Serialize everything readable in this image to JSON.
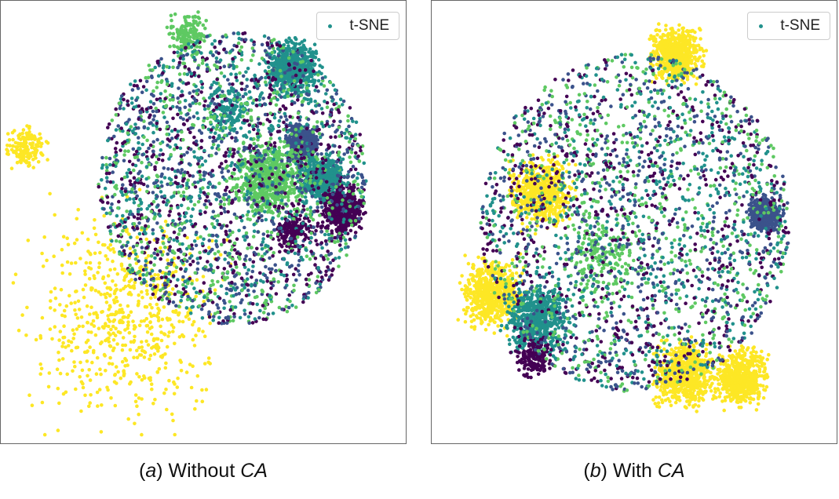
{
  "chart_data": [
    {
      "type": "scatter",
      "caption": {
        "letter": "a",
        "text": " Without ",
        "method": "CA"
      },
      "legend": {
        "label": "t-SNE",
        "position": "top-right"
      },
      "axes": "hidden",
      "palette": [
        "#440154",
        "#3b528b",
        "#21918c",
        "#5ec962",
        "#fde725"
      ],
      "regions": [
        {
          "class": 4,
          "cx": 0.3,
          "cy": 0.72,
          "r": 0.2,
          "density": "high"
        },
        {
          "class": 4,
          "cx": 0.06,
          "cy": 0.33,
          "r": 0.04,
          "density": "medium"
        },
        {
          "class": 1,
          "cx": 0.74,
          "cy": 0.32,
          "r": 0.03,
          "density": "high"
        },
        {
          "class": 2,
          "cx": 0.79,
          "cy": 0.4,
          "r": 0.04,
          "density": "high"
        },
        {
          "class": 0,
          "cx": 0.84,
          "cy": 0.47,
          "r": 0.04,
          "density": "high"
        },
        {
          "class": 3,
          "cx": 0.66,
          "cy": 0.4,
          "r": 0.07,
          "density": "high"
        },
        {
          "class": 2,
          "cx": 0.72,
          "cy": 0.15,
          "r": 0.05,
          "density": "high"
        },
        {
          "class": 2,
          "cx": 0.56,
          "cy": 0.25,
          "r": 0.05,
          "density": "medium"
        },
        {
          "class": 0,
          "cx": 0.72,
          "cy": 0.52,
          "r": 0.04,
          "density": "medium"
        },
        {
          "class": 3,
          "cx": 0.46,
          "cy": 0.08,
          "r": 0.04,
          "density": "medium"
        },
        {
          "class": "mixed",
          "cx": 0.57,
          "cy": 0.4,
          "r": 0.33,
          "density": "medium"
        }
      ]
    },
    {
      "type": "scatter",
      "caption": {
        "letter": "b",
        "text": " With ",
        "method": "CA"
      },
      "legend": {
        "label": "t-SNE",
        "position": "top-right"
      },
      "axes": "hidden",
      "palette": [
        "#440154",
        "#3b528b",
        "#21918c",
        "#5ec962",
        "#fde725"
      ],
      "regions": [
        {
          "class": 4,
          "cx": 0.27,
          "cy": 0.43,
          "r": 0.06,
          "density": "high"
        },
        {
          "class": 4,
          "cx": 0.15,
          "cy": 0.66,
          "r": 0.06,
          "density": "high"
        },
        {
          "class": 4,
          "cx": 0.6,
          "cy": 0.12,
          "r": 0.05,
          "density": "high"
        },
        {
          "class": 4,
          "cx": 0.62,
          "cy": 0.84,
          "r": 0.06,
          "density": "high"
        },
        {
          "class": 4,
          "cx": 0.76,
          "cy": 0.85,
          "r": 0.05,
          "density": "high"
        },
        {
          "class": 1,
          "cx": 0.82,
          "cy": 0.48,
          "r": 0.03,
          "density": "high"
        },
        {
          "class": 2,
          "cx": 0.26,
          "cy": 0.72,
          "r": 0.06,
          "density": "high"
        },
        {
          "class": 0,
          "cx": 0.25,
          "cy": 0.8,
          "r": 0.04,
          "density": "medium"
        },
        {
          "class": 3,
          "cx": 0.42,
          "cy": 0.58,
          "r": 0.07,
          "density": "medium"
        },
        {
          "class": "mixed",
          "cx": 0.5,
          "cy": 0.5,
          "r": 0.38,
          "density": "medium"
        }
      ]
    }
  ]
}
